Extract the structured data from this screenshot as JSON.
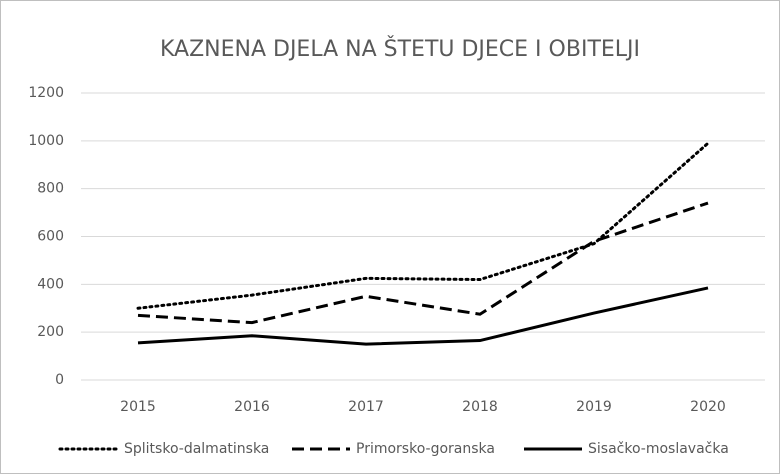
{
  "chart_data": {
    "type": "line",
    "title": "KAZNENA DJELA NA ŠTETU DJECE I OBITELJI",
    "categories": [
      "2015",
      "2016",
      "2017",
      "2018",
      "2019",
      "2020"
    ],
    "series": [
      {
        "name": "Splitsko-dalmatinska",
        "color": "#000000",
        "dash": "dotted",
        "values": [
          300,
          355,
          425,
          420,
          570,
          990
        ]
      },
      {
        "name": "Primorsko-goranska",
        "color": "#000000",
        "dash": "dashed",
        "values": [
          270,
          240,
          350,
          275,
          580,
          740
        ]
      },
      {
        "name": "Sisačko-moslavačka",
        "color": "#000000",
        "dash": "solid",
        "values": [
          155,
          185,
          150,
          165,
          280,
          385
        ]
      }
    ],
    "ylim": [
      0,
      1200
    ],
    "yticks": [
      0,
      200,
      400,
      600,
      800,
      1000,
      1200
    ],
    "grid": true,
    "legend": "bottom"
  }
}
